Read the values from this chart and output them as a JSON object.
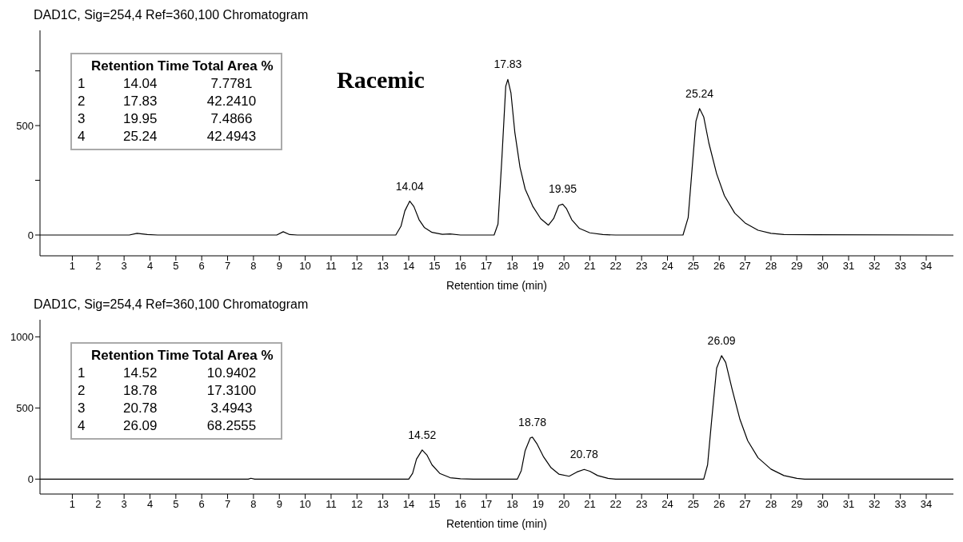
{
  "chart_data": [
    {
      "type": "line",
      "title": "DAD1C, Sig=254,4  Ref=360,100 Chromatogram",
      "xlabel": "Retention time (min)",
      "annotations": [
        "Retention Time",
        "Total Area %",
        "1",
        "14.04",
        "7.7781",
        "2",
        "17.83",
        "42.2410",
        "3",
        "19.95",
        "7.4866",
        "4",
        "25.24",
        "42.4943",
        "Racemic",
        {
          "text": "14.04",
          "x": 14.04,
          "y": 155
        },
        {
          "text": "17.83",
          "x": 17.83,
          "y": 711
        },
        {
          "text": "19.95",
          "x": 19.95,
          "y": 141
        },
        {
          "text": "25.24",
          "x": 25.24,
          "y": 578
        }
      ],
      "series": [
        {
          "color": "#000000",
          "x": [
            -0.25,
            3.2,
            3.5,
            3.9,
            4.3,
            8.9,
            9.15,
            9.4,
            9.7,
            13.5,
            13.7,
            13.85,
            14.04,
            14.2,
            14.4,
            14.6,
            14.9,
            15.3,
            15.6,
            16,
            17.3,
            17.45,
            17.6,
            17.75,
            17.83,
            17.95,
            18.1,
            18.3,
            18.5,
            18.8,
            19.1,
            19.4,
            19.6,
            19.8,
            19.95,
            20.1,
            20.3,
            20.6,
            21,
            21.5,
            22,
            24.6,
            24.8,
            24.95,
            25.1,
            25.24,
            25.4,
            25.6,
            25.9,
            26.2,
            26.6,
            27,
            27.5,
            28,
            28.5,
            35.05
          ],
          "values": [
            0,
            0,
            8,
            2,
            0,
            0,
            15,
            2,
            0,
            0,
            40,
            110,
            155,
            130,
            70,
            35,
            12,
            3,
            5,
            0,
            0,
            50,
            350,
            680,
            711,
            650,
            470,
            310,
            210,
            130,
            75,
            45,
            75,
            135,
            141,
            120,
            70,
            30,
            10,
            2,
            0,
            0,
            80,
            300,
            520,
            578,
            540,
            420,
            280,
            180,
            100,
            55,
            22,
            8,
            2,
            0
          ]
        }
      ],
      "xlim": [
        -0.25,
        35.05
      ],
      "xticks": [
        1,
        2,
        3,
        4,
        5,
        6,
        7,
        8,
        9,
        10,
        11,
        12,
        13,
        14,
        15,
        16,
        17,
        18,
        19,
        20,
        21,
        22,
        23,
        24,
        25,
        26,
        27,
        28,
        29,
        30,
        31,
        32,
        33,
        34
      ],
      "ylim": [
        -95,
        935
      ],
      "yticks": [
        0,
        {
          "value": 250,
          "label": null
        },
        500,
        {
          "value": 750,
          "label": null
        }
      ],
      "grid": false,
      "legend": false,
      "marker": "none",
      "line_style": "solid"
    },
    {
      "type": "line",
      "title": "DAD1C, Sig=254,4  Ref=360,100 Chromatogram",
      "xlabel": "Retention time (min)",
      "annotations": [
        "Retention Time",
        "Total Area %",
        "1",
        "14.52",
        "10.9402",
        "2",
        "18.78",
        "17.3100",
        "3",
        "20.78",
        "3.4943",
        "4",
        "26.09",
        "68.2555",
        {
          "text": "14.52",
          "x": 14.52,
          "y": 205
        },
        {
          "text": "18.78",
          "x": 18.78,
          "y": 295
        },
        {
          "text": "20.78",
          "x": 20.78,
          "y": 68
        },
        {
          "text": "26.09",
          "x": 26.09,
          "y": 868
        }
      ],
      "series": [
        {
          "color": "#000000",
          "x": [
            -0.25,
            7.8,
            7.9,
            8.05,
            14,
            14.15,
            14.3,
            14.52,
            14.7,
            14.9,
            15.2,
            15.6,
            16,
            16.5,
            18.2,
            18.35,
            18.5,
            18.7,
            18.78,
            18.95,
            19.2,
            19.5,
            19.8,
            20.2,
            20.5,
            20.78,
            21,
            21.3,
            21.7,
            22,
            25.4,
            25.55,
            25.7,
            25.9,
            26.09,
            26.25,
            26.5,
            26.8,
            27.1,
            27.5,
            28,
            28.5,
            29,
            29.3,
            35.05
          ],
          "values": [
            0,
            0,
            6,
            0,
            0,
            40,
            140,
            205,
            170,
            100,
            40,
            10,
            2,
            0,
            0,
            60,
            200,
            290,
            295,
            250,
            160,
            80,
            35,
            20,
            50,
            68,
            55,
            25,
            5,
            0,
            0,
            100,
            400,
            780,
            868,
            820,
            630,
            420,
            270,
            150,
            70,
            25,
            5,
            0,
            0
          ]
        }
      ],
      "xlim": [
        -0.25,
        35.05
      ],
      "xticks": [
        1,
        2,
        3,
        4,
        5,
        6,
        7,
        8,
        9,
        10,
        11,
        12,
        13,
        14,
        15,
        16,
        17,
        18,
        19,
        20,
        21,
        22,
        23,
        24,
        25,
        26,
        27,
        28,
        29,
        30,
        31,
        32,
        33,
        34
      ],
      "ylim": [
        -105,
        1120
      ],
      "yticks": [
        0,
        500,
        1000
      ],
      "grid": false,
      "legend": false,
      "marker": "none",
      "line_style": "solid"
    }
  ]
}
